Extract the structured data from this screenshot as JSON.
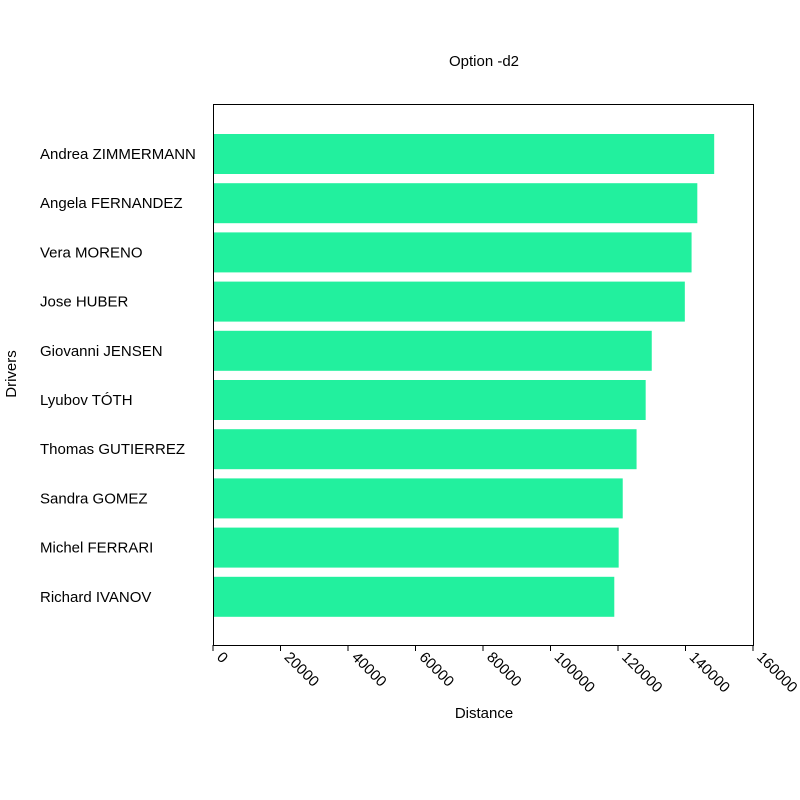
{
  "chart_data": {
    "type": "bar",
    "orientation": "horizontal",
    "title": "Option -d2",
    "xlabel": "Distance",
    "ylabel": "Drivers",
    "xlim": [
      0,
      160000
    ],
    "xticks": [
      0,
      20000,
      40000,
      60000,
      80000,
      100000,
      120000,
      140000,
      160000
    ],
    "grid": false,
    "bar_color": "#22f09e",
    "categories": [
      "Andrea ZIMMERMANN",
      "Angela FERNANDEZ",
      "Vera MORENO",
      "Jose HUBER",
      "Giovanni JENSEN",
      "Lyubov TÓTH",
      "Thomas GUTIERREZ",
      "Sandra GOMEZ",
      "Michel FERRARI",
      "Richard IVANOV"
    ],
    "values": [
      148500,
      143500,
      141800,
      139800,
      130000,
      128200,
      125500,
      121400,
      120200,
      118900
    ]
  }
}
